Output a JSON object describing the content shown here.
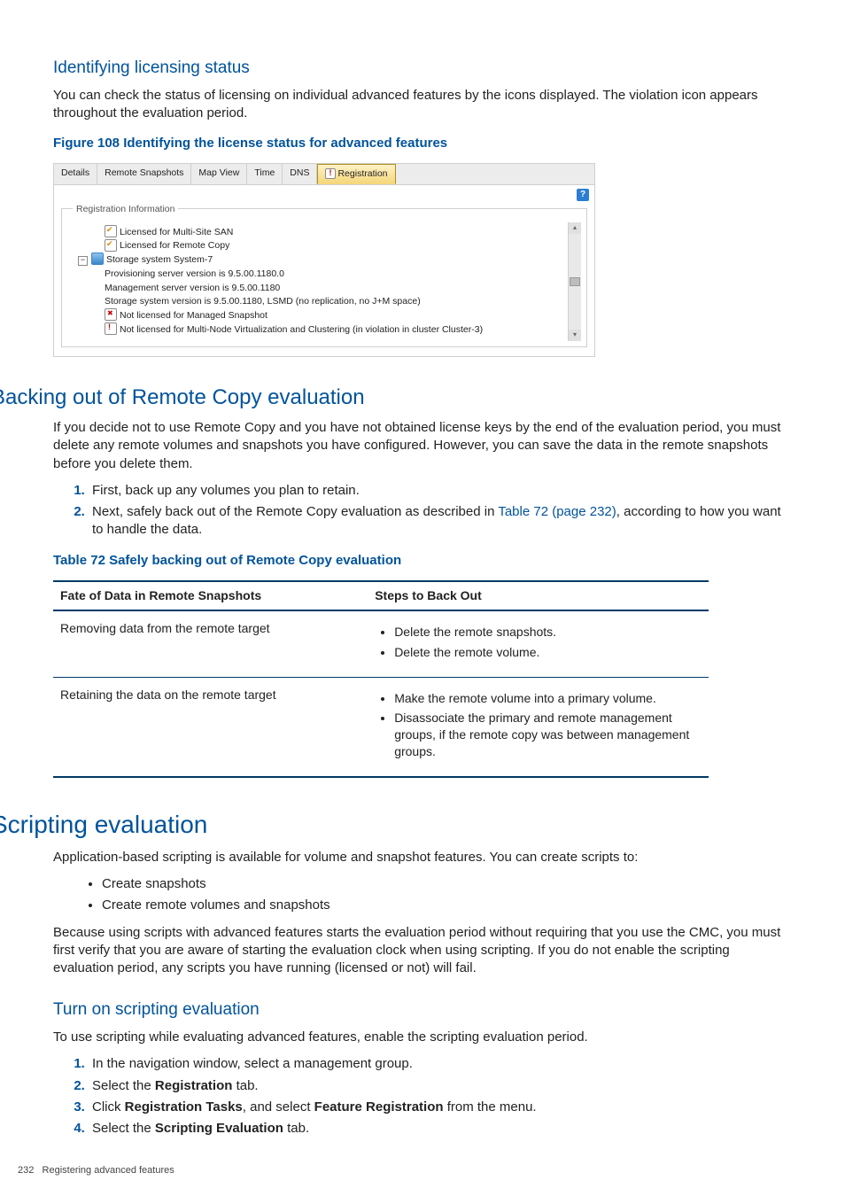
{
  "colors": {
    "brand": "#00539b",
    "table_rule": "#003a66"
  },
  "s1": {
    "h": "Identifying licensing status",
    "p": "You can check the status of licensing on individual advanced features by the icons displayed. The violation icon appears throughout the evaluation period.",
    "fig_caption": "Figure 108 Identifying the license status for advanced features"
  },
  "fig": {
    "tabs": [
      "Details",
      "Remote Snapshots",
      "Map View",
      "Time",
      "DNS",
      "Registration"
    ],
    "active_tab_index": 5,
    "help": "?",
    "legend": "Registration Information",
    "rows": [
      {
        "indent": 1,
        "icon": "ok",
        "text": "Licensed for Multi-Site SAN"
      },
      {
        "indent": 1,
        "icon": "ok",
        "text": "Licensed for Remote Copy"
      },
      {
        "indent": 0,
        "icon": "db",
        "collapse": "−",
        "text": "Storage system System-7"
      },
      {
        "indent": 1,
        "icon": "",
        "text": "Provisioning server version is 9.5.00.1180.0"
      },
      {
        "indent": 1,
        "icon": "",
        "text": "Management server version is 9.5.00.1180"
      },
      {
        "indent": 1,
        "icon": "",
        "text": "Storage system version is 9.5.00.1180, LSMD (no replication, no J+M space)"
      },
      {
        "indent": 1,
        "icon": "x",
        "text": "Not licensed for Managed Snapshot"
      },
      {
        "indent": 1,
        "icon": "warn",
        "text": "Not licensed for Multi-Node Virtualization and Clustering (in violation in cluster Cluster-3)"
      }
    ],
    "scroll": {
      "up": "▴",
      "down": "▾"
    }
  },
  "s2": {
    "h": "Backing out of Remote Copy evaluation",
    "p": "If you decide not to use Remote Copy and you have not obtained license keys by the end of the evaluation period, you must delete any remote volumes and snapshots you have configured. However, you can save the data in the remote snapshots before you delete them.",
    "ol": [
      {
        "t": "First, back up any volumes you plan to retain."
      },
      {
        "t_pre": "Next, safely back out of the Remote Copy evaluation as described in ",
        "link": "Table 72 (page 232)",
        "t_post": ", according to how you want to handle the data."
      }
    ],
    "tbl_caption": "Table 72 Safely backing out of Remote Copy evaluation",
    "tbl": {
      "head": [
        "Fate of Data in Remote Snapshots",
        "Steps to Back Out"
      ],
      "rows": [
        {
          "c0": "Removing data from the remote target",
          "steps": [
            "Delete the remote snapshots.",
            "Delete the remote volume."
          ]
        },
        {
          "c0": "Retaining the data on the remote target",
          "steps": [
            "Make the remote volume into a primary volume.",
            "Disassociate the primary and remote management groups, if the remote copy was between management groups."
          ]
        }
      ]
    }
  },
  "s3": {
    "h": "Scripting evaluation",
    "p1": "Application-based scripting is available for volume and snapshot features. You can create scripts to:",
    "ul": [
      "Create snapshots",
      "Create remote volumes and snapshots"
    ],
    "p2": "Because using scripts with advanced features starts the evaluation period without requiring that you use the CMC, you must first verify that you are aware of starting the evaluation clock when using scripting. If you do not enable the scripting evaluation period, any scripts you have running (licensed or not) will fail."
  },
  "s4": {
    "h": "Turn on scripting evaluation",
    "p": "To use scripting while evaluating advanced features, enable the scripting evaluation period.",
    "ol": [
      {
        "t": "In the navigation window, select a management group."
      },
      {
        "pre": "Select the ",
        "b": "Registration",
        "post": " tab."
      },
      {
        "pre": "Click ",
        "b": "Registration Tasks",
        "mid": ", and select ",
        "b2": "Feature Registration",
        "post": " from the menu."
      },
      {
        "pre": "Select the ",
        "b": "Scripting Evaluation",
        "post": " tab."
      }
    ]
  },
  "footer": {
    "page": "232",
    "title": "Registering advanced features"
  }
}
